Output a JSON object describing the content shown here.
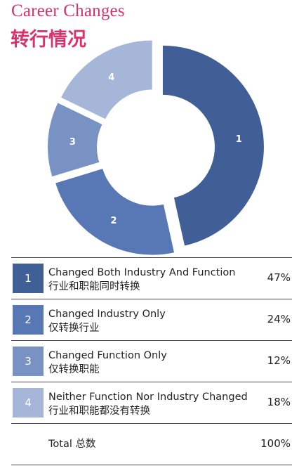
{
  "title": "Career Changes",
  "title_zh": "转行情况",
  "chart_data": {
    "type": "pie",
    "categories": [
      "1",
      "2",
      "3",
      "4"
    ],
    "values": [
      47,
      24,
      12,
      18
    ],
    "colors": [
      "#3f5f96",
      "#5877b5",
      "#7892c4",
      "#a6b6d8"
    ]
  },
  "legend": [
    {
      "num": "1",
      "en": "Changed Both Industry And Function",
      "zh": "行业和职能同时转换",
      "pct": "47%",
      "color": "#3f5f96"
    },
    {
      "num": "2",
      "en": "Changed Industry Only",
      "zh": "仅转换行业",
      "pct": "24%",
      "color": "#5877b5"
    },
    {
      "num": "3",
      "en": "Changed Function Only",
      "zh": "仅转换职能",
      "pct": "12%",
      "color": "#7892c4"
    },
    {
      "num": "4",
      "en": "Neither Function Nor Industry Changed",
      "zh": "行业和职能都没有转换",
      "pct": "18%",
      "color": "#a6b6d8"
    }
  ],
  "total": {
    "label": "Total 总数",
    "pct": "100%"
  }
}
